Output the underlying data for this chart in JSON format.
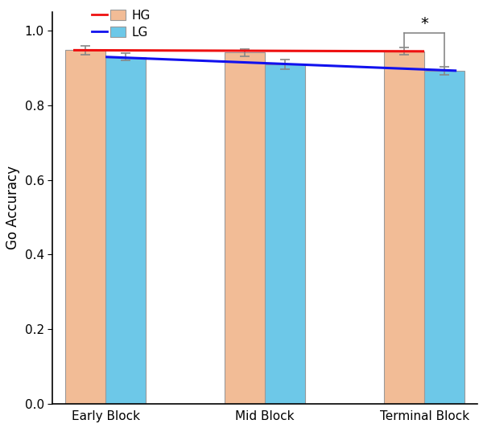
{
  "blocks": [
    "Early Block",
    "Mid Block",
    "Terminal Block"
  ],
  "hg_values": [
    0.948,
    0.942,
    0.945
  ],
  "lg_values": [
    0.93,
    0.91,
    0.893
  ],
  "hg_errors": [
    0.012,
    0.01,
    0.01
  ],
  "lg_errors": [
    0.01,
    0.012,
    0.01
  ],
  "hg_color": "#F2BC96",
  "lg_color": "#6DC8E8",
  "hg_line_color": "#EE1111",
  "lg_line_color": "#1111EE",
  "ylabel": "Go Accuracy",
  "ylim": [
    0.0,
    1.05
  ],
  "yticks": [
    0.0,
    0.2,
    0.4,
    0.6,
    0.8,
    1.0
  ],
  "bar_width": 0.38,
  "significance_label": "*",
  "background_color": "#FFFFFF"
}
